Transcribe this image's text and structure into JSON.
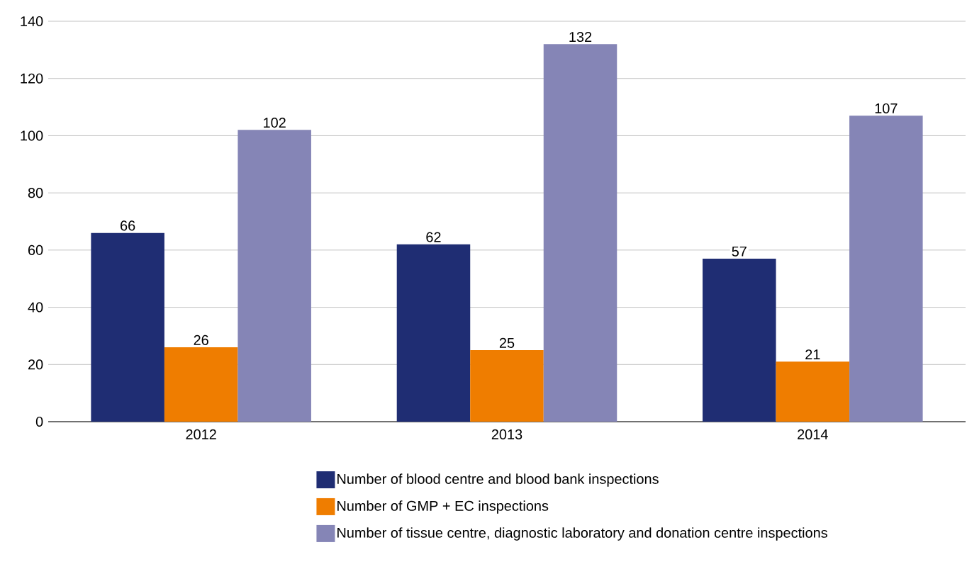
{
  "chart_data": {
    "type": "bar",
    "categories": [
      "2012",
      "2013",
      "2014"
    ],
    "series": [
      {
        "name": "Number of blood centre and blood bank inspections",
        "color": "#1f2d73",
        "values": [
          66,
          62,
          57
        ]
      },
      {
        "name": "Number of GMP + EC inspections",
        "color": "#ef7d00",
        "values": [
          26,
          25,
          21
        ]
      },
      {
        "name": "Number of tissue centre, diagnostic laboratory and donation centre inspections",
        "color": "#8585b6",
        "values": [
          102,
          132,
          107
        ]
      }
    ],
    "ylim": [
      0,
      140
    ],
    "yticks": [
      0,
      20,
      40,
      60,
      80,
      100,
      120,
      140
    ],
    "grid": "y",
    "legend": "bottom",
    "data_labels": true
  }
}
